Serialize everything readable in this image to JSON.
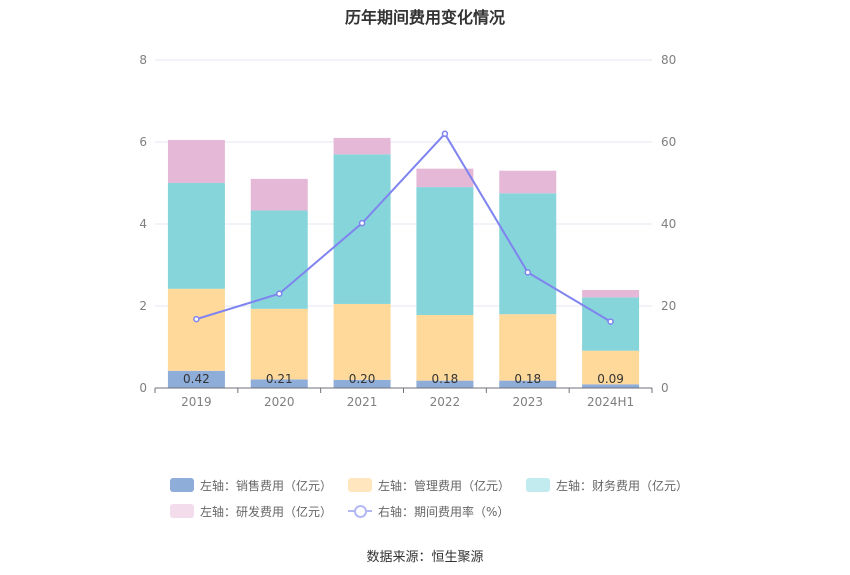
{
  "title": "历年期间费用变化情况",
  "source": "数据来源：恒生聚源",
  "colors": {
    "sales": "#8eadd9",
    "mgmt": "#ffd99a",
    "finance": "#86d5da",
    "rnd": "#e6b8d8",
    "rate": "#7f84ef"
  },
  "legend": [
    {
      "label": "左轴：销售费用（亿元）",
      "color": "#8eadd9"
    },
    {
      "label": "左轴：管理费用（亿元）",
      "color": "#ffe6bf"
    },
    {
      "label": "左轴：财务费用（亿元）",
      "color": "#c1ebee"
    },
    {
      "label": "左轴：研发费用（亿元）",
      "color": "#f3dcec"
    },
    {
      "label": "右轴：期间费用率（%）",
      "color": "#b3b8f3"
    }
  ],
  "chart_data": {
    "type": "bar",
    "stacked": true,
    "categories": [
      "2019",
      "2020",
      "2021",
      "2022",
      "2023",
      "2024H1"
    ],
    "series": [
      {
        "name": "左轴：销售费用（亿元）",
        "axis": "left",
        "values": [
          0.42,
          0.21,
          0.2,
          0.18,
          0.18,
          0.09
        ]
      },
      {
        "name": "左轴：管理费用（亿元）",
        "axis": "left",
        "values": [
          2.0,
          1.72,
          1.85,
          1.6,
          1.62,
          0.82
        ]
      },
      {
        "name": "左轴：财务费用（亿元）",
        "axis": "left",
        "values": [
          2.58,
          2.4,
          3.65,
          3.12,
          2.95,
          1.3
        ]
      },
      {
        "name": "左轴：研发费用（亿元）",
        "axis": "left",
        "values": [
          1.05,
          0.77,
          0.4,
          0.45,
          0.55,
          0.18
        ]
      },
      {
        "name": "右轴：期间费用率（%）",
        "axis": "right",
        "type": "line",
        "values": [
          16.8,
          23.0,
          40.2,
          62.0,
          28.2,
          16.2
        ]
      }
    ],
    "data_labels": [
      "0.42",
      "0.21",
      "0.20",
      "0.18",
      "0.18",
      "0.09"
    ],
    "ylim_left": [
      0,
      8
    ],
    "yticks_left": [
      "0",
      "2",
      "4",
      "6",
      "8"
    ],
    "ylim_right": [
      0,
      80
    ],
    "yticks_right": [
      "0",
      "20",
      "40",
      "60",
      "80"
    ],
    "grid": true,
    "legend_position": "bottom"
  }
}
